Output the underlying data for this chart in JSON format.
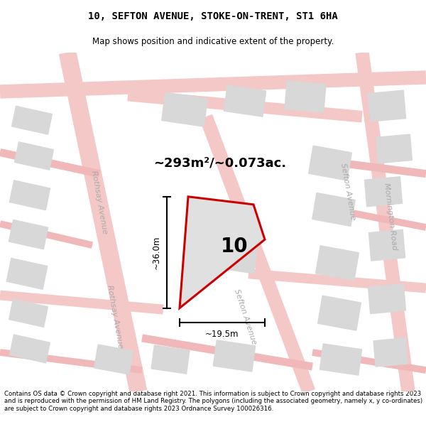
{
  "title": "10, SEFTON AVENUE, STOKE-ON-TRENT, ST1 6HA",
  "subtitle": "Map shows position and indicative extent of the property.",
  "area_text": "~293m²/~0.073ac.",
  "label_number": "10",
  "dim_width": "~19.5m",
  "dim_height": "~36.0m",
  "footer": "Contains OS data © Crown copyright and database right 2021. This information is subject to Crown copyright and database rights 2023 and is reproduced with the permission of HM Land Registry. The polygons (including the associated geometry, namely x, y co-ordinates) are subject to Crown copyright and database rights 2023 Ordnance Survey 100026316.",
  "bg_color": "#ffffff",
  "map_bg": "#ffffff",
  "road_color": "#f5c8c8",
  "road_thin_color": "#f0b8b8",
  "building_color": "#d8d8d8",
  "property_fill": "#e0e0e0",
  "property_edge": "#cc0000",
  "title_fontsize": 10,
  "subtitle_fontsize": 8.5,
  "footer_fontsize": 6.2
}
